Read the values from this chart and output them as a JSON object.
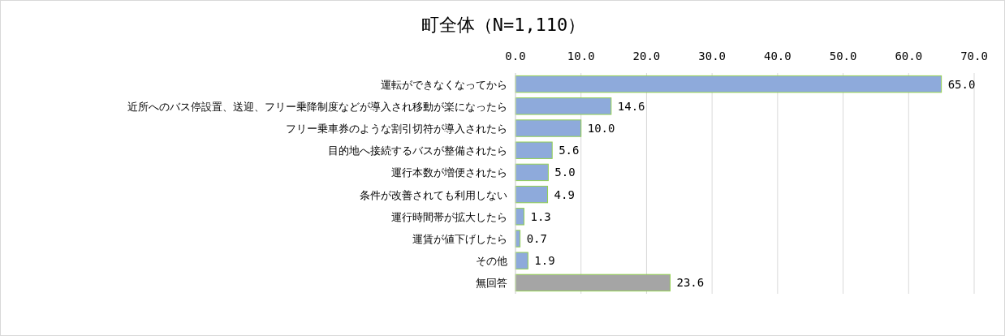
{
  "chart_data": {
    "type": "bar",
    "orientation": "horizontal",
    "title": "町全体（N=1,110）",
    "categories": [
      "運転ができなくなってから",
      "近所へのバス停設置、送迎、フリー乗降制度などが導入され移動が楽になったら",
      "フリー乗車券のような割引切符が導入されたら",
      "目的地へ接続するバスが整備されたら",
      "運行本数が増便されたら",
      "条件が改善されても利用しない",
      "運行時間帯が拡大したら",
      "運賃が値下げしたら",
      "その他",
      "無回答"
    ],
    "values": [
      65.0,
      14.6,
      10.0,
      5.6,
      5.0,
      4.9,
      1.3,
      0.7,
      1.9,
      23.6
    ],
    "value_labels": [
      "65.0",
      "14.6",
      "10.0",
      "5.6",
      "5.0",
      "4.9",
      "1.3",
      "0.7",
      "1.9",
      "23.6"
    ],
    "colors": [
      "#8eaadb",
      "#8eaadb",
      "#8eaadb",
      "#8eaadb",
      "#8eaadb",
      "#8eaadb",
      "#8eaadb",
      "#8eaadb",
      "#8eaadb",
      "#a5a5a5"
    ],
    "xlim": [
      0,
      70
    ],
    "xticks": [
      {
        "value": 0,
        "label": "0.0"
      },
      {
        "value": 10,
        "label": "10.0"
      },
      {
        "value": 20,
        "label": "20.0"
      },
      {
        "value": 30,
        "label": "30.0"
      },
      {
        "value": 40,
        "label": "40.0"
      },
      {
        "value": 50,
        "label": "50.0"
      },
      {
        "value": 60,
        "label": "60.0"
      },
      {
        "value": 70,
        "label": "70.0"
      }
    ],
    "grid": "x"
  }
}
